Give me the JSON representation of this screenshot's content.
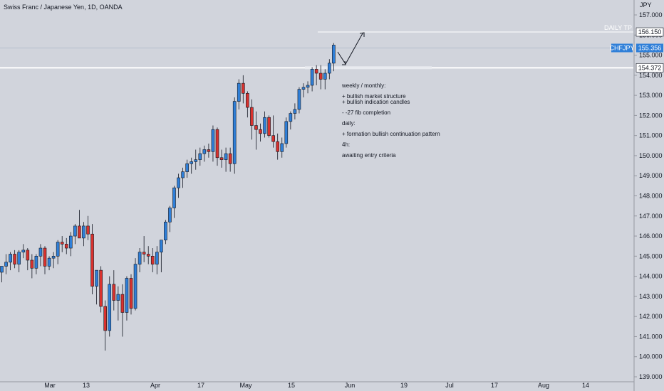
{
  "title": "Swiss Franc / Japanese Yen, 1D, OANDA",
  "currency": "JPY",
  "colors": {
    "background": "#d1d4dc",
    "up": "#2f7fd8",
    "down": "#d8322e",
    "wick": "#131722",
    "line": "#ffffff",
    "tag_blue": "#2f7fd8",
    "tag_white": "#ffffff",
    "text": "#131722"
  },
  "price_tags": {
    "symbol": "CHFJPY",
    "last_price": "155.356",
    "target_price": "156.150",
    "target_label": "DAILY TP",
    "support_price": "154.372"
  },
  "notes": [
    "weekly / monthly:",
    "+ bullish market structure",
    "+ bullish indication candles",
    "- -27 fib completion",
    "daily:",
    "+ formation bullish continuation pattern",
    "4h:",
    "awaiting entry criteria"
  ],
  "chart_data": {
    "type": "candlestick",
    "title": "Swiss Franc / Japanese Yen, 1D, OANDA",
    "yaxis_unit": "JPY",
    "ylim": [
      139.0,
      157.0
    ],
    "y_ticks": [
      "157.000",
      "156.000",
      "155.000",
      "154.000",
      "153.000",
      "152.000",
      "151.000",
      "150.000",
      "149.000",
      "148.000",
      "147.000",
      "146.000",
      "145.000",
      "144.000",
      "143.000",
      "142.000",
      "141.000",
      "140.000",
      "139.000"
    ],
    "x_ticks": [
      "Mar",
      "13",
      "Apr",
      "17",
      "May",
      "15",
      "Jun",
      "19",
      "Jul",
      "17",
      "Aug",
      "14"
    ],
    "horizontal_levels": [
      {
        "label": "DAILY TP",
        "value": 156.15
      },
      {
        "label": "CHFJPY",
        "value": 155.356
      },
      {
        "label": "",
        "value": 154.372
      }
    ],
    "candles": [
      [
        144.2,
        144.5,
        143.7,
        144.5
      ],
      [
        144.5,
        145.1,
        144.1,
        144.7
      ],
      [
        144.7,
        145.2,
        144.3,
        145.1
      ],
      [
        145.1,
        145.3,
        144.4,
        144.6
      ],
      [
        144.6,
        145.3,
        144.2,
        145.2
      ],
      [
        145.2,
        145.6,
        144.9,
        145.3
      ],
      [
        145.3,
        145.4,
        144.3,
        144.8
      ],
      [
        144.8,
        145.1,
        143.9,
        144.4
      ],
      [
        144.4,
        145.1,
        144.1,
        145.0
      ],
      [
        145.0,
        145.6,
        144.5,
        145.4
      ],
      [
        145.4,
        145.5,
        144.1,
        144.5
      ],
      [
        144.5,
        145.0,
        144.3,
        144.9
      ],
      [
        144.9,
        145.2,
        144.4,
        145.0
      ],
      [
        145.0,
        145.8,
        144.6,
        145.7
      ],
      [
        145.7,
        146.0,
        145.2,
        145.6
      ],
      [
        145.6,
        145.9,
        145.1,
        145.4
      ],
      [
        145.4,
        146.2,
        145.0,
        146.0
      ],
      [
        146.0,
        146.6,
        145.6,
        146.5
      ],
      [
        146.5,
        147.3,
        145.9,
        145.9
      ],
      [
        145.9,
        146.7,
        145.5,
        146.5
      ],
      [
        146.5,
        147.0,
        145.8,
        146.1
      ],
      [
        146.1,
        146.6,
        143.1,
        143.5
      ],
      [
        143.5,
        144.3,
        142.6,
        144.3
      ],
      [
        144.3,
        144.5,
        142.2,
        142.5
      ],
      [
        142.5,
        142.8,
        140.3,
        141.3
      ],
      [
        141.3,
        144.0,
        141.0,
        143.6
      ],
      [
        143.6,
        144.3,
        142.3,
        142.8
      ],
      [
        142.8,
        143.5,
        141.8,
        143.1
      ],
      [
        143.1,
        143.6,
        141.0,
        142.2
      ],
      [
        142.2,
        144.0,
        141.8,
        143.9
      ],
      [
        143.9,
        144.1,
        142.1,
        142.4
      ],
      [
        142.4,
        144.9,
        142.3,
        144.6
      ],
      [
        144.6,
        145.4,
        144.2,
        145.2
      ],
      [
        145.2,
        146.0,
        144.7,
        145.1
      ],
      [
        145.1,
        145.5,
        144.6,
        145.0
      ],
      [
        145.0,
        145.4,
        144.2,
        144.6
      ],
      [
        144.6,
        145.5,
        144.1,
        145.2
      ],
      [
        145.2,
        145.8,
        144.2,
        145.8
      ],
      [
        145.8,
        146.8,
        145.6,
        146.7
      ],
      [
        146.7,
        147.5,
        146.2,
        147.4
      ],
      [
        147.4,
        148.5,
        146.9,
        148.4
      ],
      [
        148.4,
        149.1,
        147.9,
        148.9
      ],
      [
        148.9,
        149.4,
        148.4,
        149.2
      ],
      [
        149.2,
        149.8,
        148.9,
        149.6
      ],
      [
        149.6,
        149.9,
        149.1,
        149.7
      ],
      [
        149.7,
        150.3,
        149.3,
        149.8
      ],
      [
        149.8,
        150.4,
        149.5,
        150.1
      ],
      [
        150.1,
        150.5,
        149.7,
        150.3
      ],
      [
        150.3,
        150.6,
        149.9,
        150.2
      ],
      [
        150.2,
        151.5,
        149.7,
        151.3
      ],
      [
        151.3,
        151.4,
        149.5,
        149.9
      ],
      [
        149.9,
        150.3,
        149.4,
        149.8
      ],
      [
        149.8,
        150.4,
        149.2,
        150.1
      ],
      [
        150.1,
        150.4,
        149.2,
        149.6
      ],
      [
        149.6,
        152.9,
        149.1,
        152.7
      ],
      [
        152.7,
        153.8,
        152.3,
        153.6
      ],
      [
        153.6,
        154.0,
        152.6,
        153.1
      ],
      [
        153.1,
        153.2,
        151.9,
        152.4
      ],
      [
        152.4,
        152.8,
        150.8,
        151.5
      ],
      [
        151.5,
        152.2,
        150.3,
        151.3
      ],
      [
        151.3,
        151.6,
        150.7,
        151.1
      ],
      [
        151.1,
        152.2,
        150.9,
        151.9
      ],
      [
        151.9,
        152.0,
        150.9,
        151.0
      ],
      [
        151.0,
        152.0,
        150.4,
        150.7
      ],
      [
        150.7,
        151.1,
        149.8,
        150.2
      ],
      [
        150.2,
        150.9,
        149.9,
        150.6
      ],
      [
        150.6,
        151.9,
        150.4,
        151.7
      ],
      [
        151.7,
        152.2,
        151.3,
        152.1
      ],
      [
        152.1,
        152.6,
        151.8,
        152.3
      ],
      [
        152.3,
        153.4,
        152.1,
        153.3
      ],
      [
        153.3,
        153.6,
        152.9,
        153.4
      ],
      [
        153.4,
        153.7,
        153.1,
        153.5
      ],
      [
        153.5,
        154.4,
        153.2,
        154.3
      ],
      [
        154.3,
        154.5,
        153.5,
        154.1
      ],
      [
        154.1,
        154.5,
        153.3,
        153.8
      ],
      [
        153.8,
        154.3,
        153.3,
        154.1
      ],
      [
        154.1,
        154.8,
        153.8,
        154.6
      ],
      [
        154.6,
        155.6,
        154.2,
        155.5
      ]
    ]
  }
}
